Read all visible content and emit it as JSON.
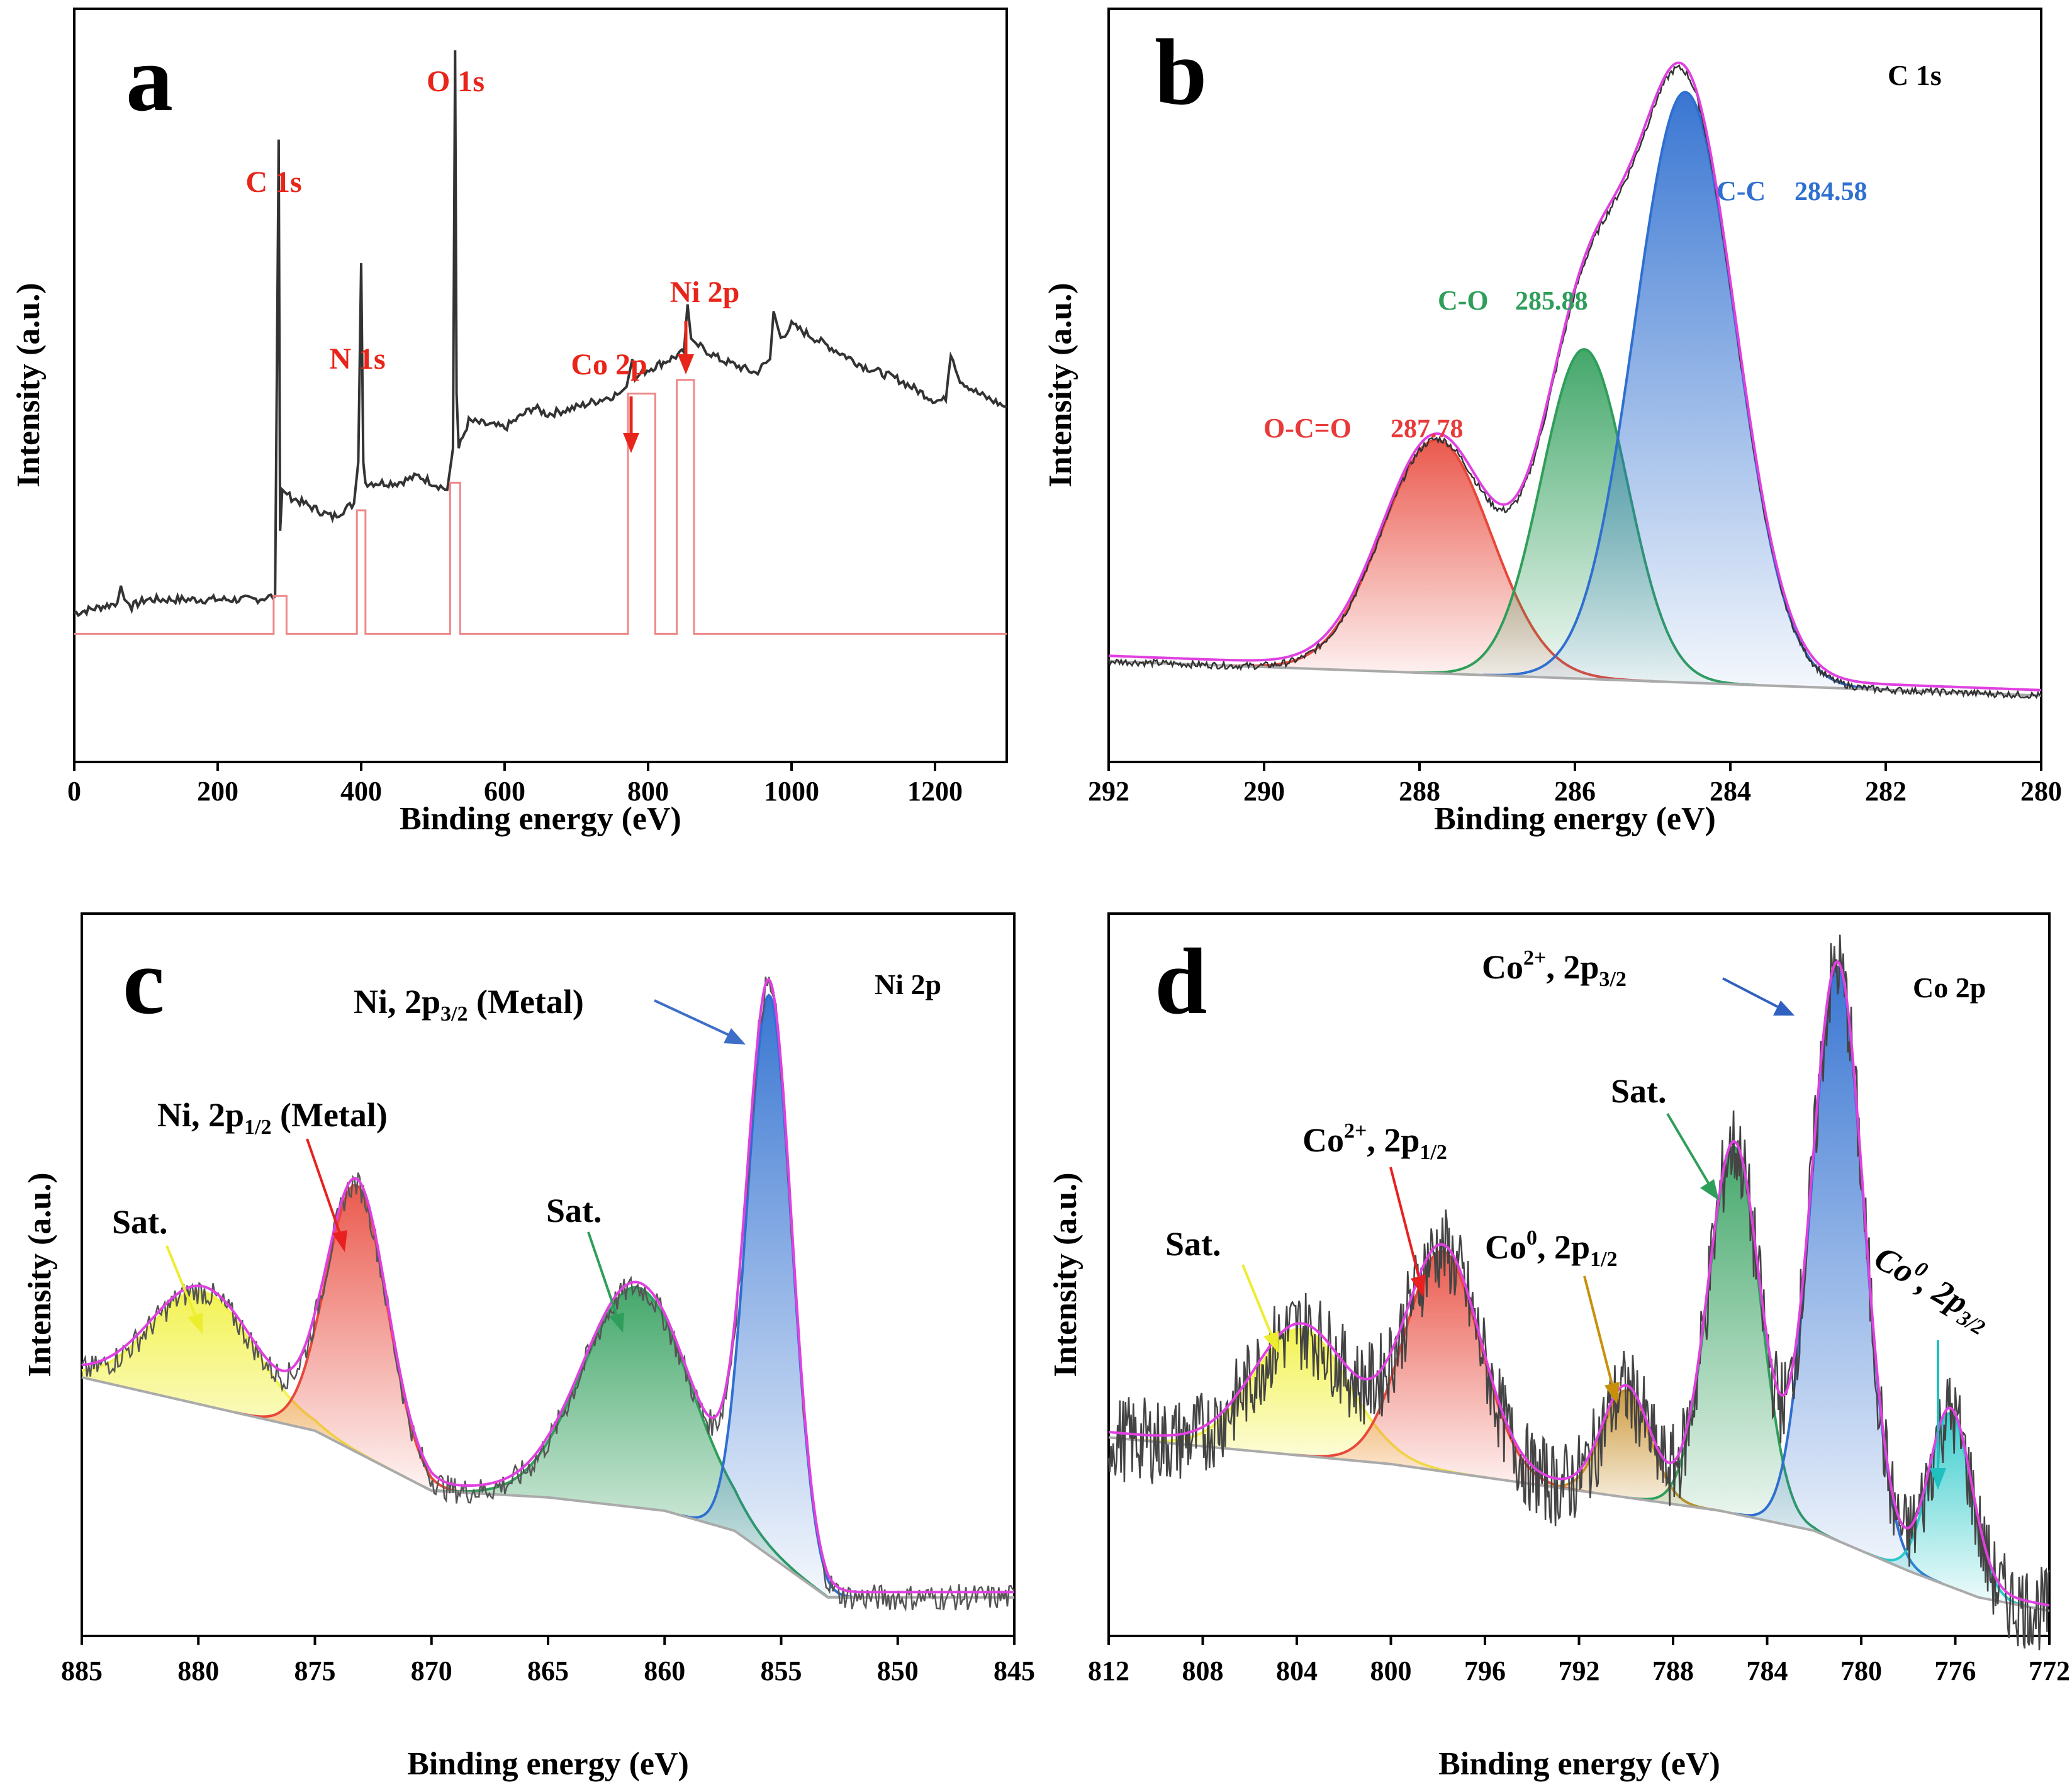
{
  "chart_data": [
    {
      "id": "a",
      "type": "line",
      "panel_label": "a",
      "xlabel": "Binding energy (eV)",
      "ylabel": "Intensity (a.u.)",
      "xlim": [
        0,
        1300
      ],
      "xticks": [
        0,
        200,
        400,
        600,
        800,
        1000,
        1200
      ],
      "ylim": [
        0,
        1
      ],
      "series": [
        {
          "name": "survey spectrum",
          "color": "#333333",
          "x": [
            0,
            20,
            40,
            60,
            65,
            70,
            80,
            100,
            150,
            200,
            250,
            280,
            285,
            287,
            290,
            300,
            320,
            340,
            360,
            390,
            396,
            400,
            403,
            406,
            420,
            450,
            480,
            520,
            528,
            531,
            533,
            536,
            550,
            600,
            640,
            660,
            700,
            730,
            760,
            770,
            778,
            782,
            790,
            810,
            830,
            850,
            855,
            860,
            870,
            900,
            950,
            970,
            975,
            985,
            1000,
            1050,
            1100,
            1150,
            1200,
            1215,
            1222,
            1235,
            1260,
            1300
          ],
          "y": [
            0.18,
            0.185,
            0.19,
            0.195,
            0.22,
            0.2,
            0.19,
            0.2,
            0.2,
            0.2,
            0.2,
            0.205,
            0.87,
            0.3,
            0.36,
            0.35,
            0.34,
            0.33,
            0.32,
            0.34,
            0.4,
            0.69,
            0.4,
            0.37,
            0.37,
            0.37,
            0.38,
            0.36,
            0.42,
            1.0,
            0.5,
            0.42,
            0.46,
            0.45,
            0.48,
            0.47,
            0.48,
            0.49,
            0.5,
            0.51,
            0.55,
            0.52,
            0.53,
            0.54,
            0.55,
            0.56,
            0.63,
            0.58,
            0.57,
            0.55,
            0.53,
            0.55,
            0.62,
            0.58,
            0.6,
            0.57,
            0.54,
            0.52,
            0.49,
            0.49,
            0.56,
            0.52,
            0.5,
            0.48
          ]
        },
        {
          "name": "background",
          "color": "#ee8888",
          "x": [
            0,
            278,
            278,
            296,
            296,
            394,
            394,
            406,
            406,
            524,
            524,
            538,
            538,
            772,
            772,
            810,
            810,
            840,
            840,
            864,
            864,
            1300
          ],
          "y": [
            0.15,
            0.15,
            0.205,
            0.205,
            0.15,
            0.15,
            0.33,
            0.33,
            0.15,
            0.15,
            0.37,
            0.37,
            0.15,
            0.15,
            0.5,
            0.5,
            0.15,
            0.15,
            0.52,
            0.52,
            0.15,
            0.15
          ]
        }
      ],
      "annotations": [
        {
          "text": "C 1s",
          "color": "#e8251a",
          "x": 285,
          "y": 0.94
        },
        {
          "text": "N 1s",
          "color": "#e8251a",
          "x": 400,
          "y": 0.74
        },
        {
          "text": "O 1s",
          "color": "#e8251a",
          "x": 531,
          "y": 1.07
        },
        {
          "text": "Co 2p",
          "color": "#e8251a",
          "x": 780,
          "y": 0.72
        },
        {
          "text": "Ni 2p",
          "color": "#e8251a",
          "x": 860,
          "y": 0.82
        }
      ]
    },
    {
      "id": "b",
      "type": "line",
      "panel_label": "b",
      "corner_label": "C 1s",
      "xlabel": "Binding energy (eV)",
      "ylabel": "Intensity (a.u.)",
      "xlim": [
        292,
        280
      ],
      "xticks": [
        292,
        290,
        288,
        286,
        284,
        282,
        280
      ],
      "ylim": [
        0,
        1
      ],
      "background": {
        "x": [
          292,
          280
        ],
        "y": [
          0.11,
          0.06
        ]
      },
      "peaks": [
        {
          "label": "O-C=O",
          "value_label": "287.78",
          "center": 287.78,
          "height": 0.34,
          "sigma": 0.7,
          "color": "#e8473a",
          "label_color": "#e83a3a"
        },
        {
          "label": "C-O",
          "value_label": "285.88",
          "center": 285.88,
          "height": 0.48,
          "sigma": 0.55,
          "color": "#2f9e5a",
          "label_color": "#2f9e5a"
        },
        {
          "label": "C-C",
          "value_label": "284.58",
          "center": 284.58,
          "height": 0.86,
          "sigma": 0.65,
          "color": "#2f6fd0",
          "label_color": "#2f6fd0"
        }
      ],
      "envelope_color": "#e040e0",
      "raw_color": "#333333"
    },
    {
      "id": "c",
      "type": "line",
      "panel_label": "c",
      "corner_label": "Ni 2p",
      "xlabel": "Binding energy (eV)",
      "ylabel": "Intensity (a.u.)",
      "xlim": [
        885,
        845
      ],
      "xticks": [
        885,
        880,
        875,
        870,
        865,
        860,
        855,
        850,
        845
      ],
      "ylim": [
        0,
        1
      ],
      "background": {
        "x": [
          885,
          875,
          870,
          865,
          860,
          857,
          855,
          853,
          845
        ],
        "y": [
          0.35,
          0.27,
          0.18,
          0.17,
          0.15,
          0.12,
          0.07,
          0.02,
          0.02
        ]
      },
      "peaks": [
        {
          "label": "Sat.",
          "center": 879.8,
          "height": 0.17,
          "sigma": 2.2,
          "color": "#f2f24a",
          "label_color": "#000000"
        },
        {
          "label": "Ni, 2p1/2 (Metal)",
          "center": 873.2,
          "height": 0.4,
          "sigma": 1.3,
          "color": "#e8473a",
          "label_color": "#000000"
        },
        {
          "label": "Sat.",
          "center": 861.2,
          "height": 0.33,
          "sigma": 2.3,
          "color": "#2f9e5a",
          "label_color": "#000000"
        },
        {
          "label": "Ni, 2p3/2 (Metal)",
          "center": 855.5,
          "height": 0.84,
          "sigma": 0.95,
          "color": "#2f6fd0",
          "label_color": "#000000"
        }
      ],
      "envelope_color": "#e040e0",
      "raw_color": "#555555"
    },
    {
      "id": "d",
      "type": "line",
      "panel_label": "d",
      "corner_label": "Co 2p",
      "xlabel": "Binding energy (eV)",
      "ylabel": "Intensity (a.u.)",
      "xlim": [
        812,
        772
      ],
      "xticks": [
        812,
        808,
        804,
        800,
        796,
        792,
        788,
        784,
        780,
        776,
        772
      ],
      "ylim": [
        0,
        1
      ],
      "background": {
        "x": [
          812,
          800,
          792,
          786,
          782,
          778,
          775,
          772
        ],
        "y": [
          0.26,
          0.22,
          0.18,
          0.15,
          0.12,
          0.06,
          0.02,
          0.0
        ]
      },
      "peaks": [
        {
          "label": "Sat.",
          "center": 803.8,
          "height": 0.19,
          "sigma": 2.0,
          "color": "#f2f24a",
          "label_color": "#000000",
          "arrow_color": "#eded30"
        },
        {
          "label": "Co2+, 2p1/2",
          "center": 797.8,
          "height": 0.33,
          "sigma": 1.6,
          "color": "#e8473a",
          "label_color": "#000000",
          "arrow_color": "#e82020"
        },
        {
          "label": "Co0, 2p1/2",
          "center": 790.0,
          "height": 0.16,
          "sigma": 1.0,
          "color": "#c8902a",
          "label_color": "#000000",
          "arrow_color": "#c8900a"
        },
        {
          "label": "Sat.",
          "center": 785.4,
          "height": 0.55,
          "sigma": 1.1,
          "color": "#2f9e5a",
          "label_color": "#000000",
          "arrow_color": "#2f9e5a"
        },
        {
          "label": "Co2+, 2p3/2",
          "center": 781.0,
          "height": 0.86,
          "sigma": 1.1,
          "color": "#2f6fd0",
          "label_color": "#000000",
          "arrow_color": "#3060c0"
        },
        {
          "label": "Co0, 2p3/2",
          "center": 776.2,
          "height": 0.26,
          "sigma": 0.9,
          "color": "#28c8c8",
          "label_color": "#000000",
          "arrow_color": "#20c0c0"
        }
      ],
      "envelope_color": "#e040e0",
      "raw_color": "#444444"
    }
  ],
  "labels": {
    "a_ylabel": "Intensity (a.u.)",
    "b_ylabel": "Intensity (a.u.)",
    "c_ylabel": "Intensity (a.u.)",
    "d_ylabel": "Intensity (a.u.)",
    "c_ni32_main": "Ni, 2p",
    "c_ni32_sub": "3/2",
    "c_ni32_tail": " (Metal)",
    "c_ni12_main": "Ni, 2p",
    "c_ni12_sub": "1/2",
    "c_ni12_tail": " (Metal)",
    "d_co2_32_main": "Co",
    "d_co2_32_sup": "2+",
    "d_co2_32_mid": ", 2p",
    "d_co2_32_sub": "3/2",
    "d_co2_12_main": "Co",
    "d_co2_12_sup": "2+",
    "d_co2_12_mid": ", 2p",
    "d_co2_12_sub": "1/2",
    "d_co0_12_main": "Co",
    "d_co0_12_sup": "0",
    "d_co0_12_mid": ", 2p",
    "d_co0_12_sub": "1/2",
    "d_co0_32_main": "Co",
    "d_co0_32_sup": "0",
    "d_co0_32_mid": ", 2p",
    "d_co0_32_sub": "3/2",
    "sat": "Sat."
  }
}
